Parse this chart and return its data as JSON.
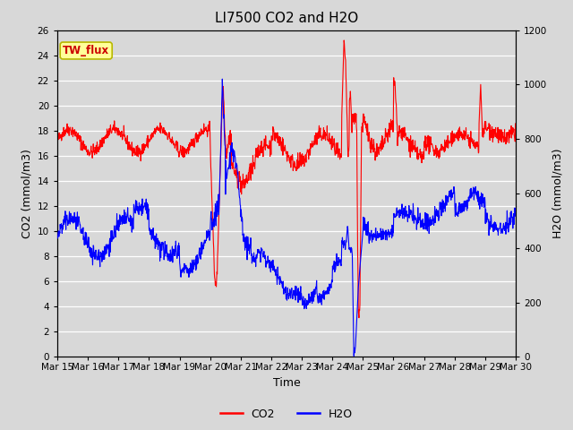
{
  "title": "LI7500 CO2 and H2O",
  "xlabel": "Time",
  "ylabel_left": "CO2 (mmol/m3)",
  "ylabel_right": "H2O (mmol/m3)",
  "ylim_left": [
    0,
    26
  ],
  "ylim_right": [
    0,
    1200
  ],
  "yticks_left": [
    0,
    2,
    4,
    6,
    8,
    10,
    12,
    14,
    16,
    18,
    20,
    22,
    24,
    26
  ],
  "yticks_right": [
    0,
    200,
    400,
    600,
    800,
    1000,
    1200
  ],
  "xtick_labels": [
    "Mar 15",
    "Mar 16",
    "Mar 17",
    "Mar 18",
    "Mar 19",
    "Mar 20",
    "Mar 21",
    "Mar 22",
    "Mar 23",
    "Mar 24",
    "Mar 25",
    "Mar 26",
    "Mar 27",
    "Mar 28",
    "Mar 29",
    "Mar 30"
  ],
  "co2_color": "#ff0000",
  "h2o_color": "#0000ff",
  "background_color": "#d8d8d8",
  "plot_bg_color": "#d8d8d8",
  "grid_color": "#ffffff",
  "annotation_text": "TW_flux",
  "annotation_bg": "#ffff99",
  "annotation_border": "#b8b800",
  "legend_co2": "CO2",
  "legend_h2o": "H2O",
  "title_fontsize": 11,
  "axis_label_fontsize": 9,
  "tick_fontsize": 7.5,
  "line_width": 0.8,
  "legend_fontsize": 9
}
